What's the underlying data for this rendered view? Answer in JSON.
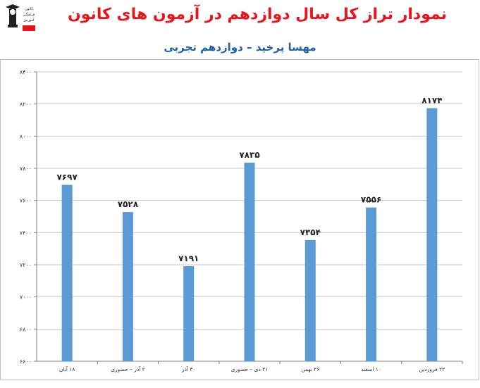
{
  "title": "نمودار تراز کل سال دوازدهم در آزمون های کانون",
  "subtitle": "مهسا پرخید – دوازدهم تجربی",
  "logo": {
    "icon": "kanoon-logo-icon",
    "text_lines": [
      "کانون",
      "فرهنگی",
      "آموزش"
    ]
  },
  "colors": {
    "title": "#e8141b",
    "subtitle": "#1f5fb0",
    "bar": "#5b9bd5",
    "grid": "#c9c9c9"
  },
  "chart_data": {
    "type": "bar",
    "title": "نمودار تراز کل سال دوازدهم در آزمون های کانون",
    "subtitle": "مهسا پرخید – دوازدهم تجربی",
    "categories": [
      "۱۸ آبان",
      "۲ آذر – حضوری",
      "۳۰ آذر",
      "۲۱ دی – حضوری",
      "۲۶ بهمن",
      "۱۰ اسفند",
      "۲۲ فروردین"
    ],
    "values": [
      7697,
      7528,
      7191,
      7835,
      7354,
      7556,
      8174
    ],
    "value_labels": [
      "۷۶۹۷",
      "۷۵۲۸",
      "۷۱۹۱",
      "۷۸۳۵",
      "۷۳۵۴",
      "۷۵۵۶",
      "۸۱۷۴"
    ],
    "ylim": [
      6600,
      8400
    ],
    "yticks": [
      6600,
      6800,
      7000,
      7200,
      7400,
      7600,
      7800,
      8000,
      8200,
      8400
    ],
    "ytick_labels": [
      "۶۶۰۰",
      "۶۸۰۰",
      "۷۰۰۰",
      "۷۲۰۰",
      "۷۴۰۰",
      "۷۶۰۰",
      "۷۸۰۰",
      "۸۰۰۰",
      "۸۲۰۰",
      "۸۴۰۰"
    ],
    "grid": "horizontal",
    "legend": "none",
    "xlabel": "",
    "ylabel": ""
  }
}
